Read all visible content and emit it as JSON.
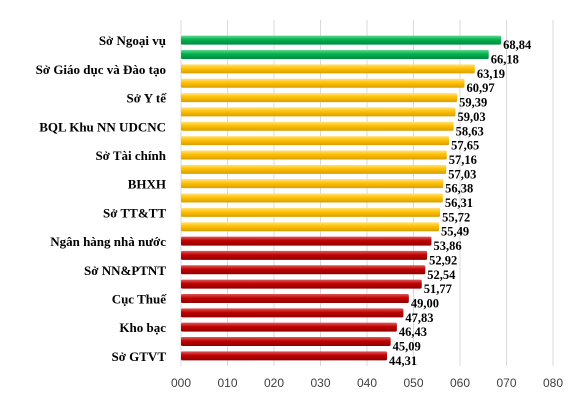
{
  "chart_data": {
    "type": "bar",
    "orientation": "horizontal",
    "values": [
      68.84,
      66.18,
      63.19,
      60.97,
      59.39,
      59.03,
      58.63,
      57.65,
      57.16,
      57.03,
      56.38,
      56.31,
      55.72,
      55.49,
      53.86,
      52.92,
      52.54,
      51.77,
      49.0,
      47.83,
      46.43,
      45.09,
      44.31
    ],
    "value_labels": [
      "68,84",
      "66,18",
      "63,19",
      "60,97",
      "59,39",
      "59,03",
      "58,63",
      "57,65",
      "57,16",
      "57,03",
      "56,38",
      "56,31",
      "55,72",
      "55,49",
      "53,86",
      "52,92",
      "52,54",
      "51,77",
      "49,00",
      "47,83",
      "46,43",
      "45,09",
      "44,31"
    ],
    "category_labels": [
      "Sở Ngoại vụ",
      "",
      "Sở Giáo dục và Đào tạo",
      "",
      "Sở Y tế",
      "",
      "BQL Khu NN UDCNC",
      "",
      "Sở Tài chính",
      "",
      "BHXH",
      "",
      "Sở TT&TT",
      "",
      "Ngân hàng nhà nước",
      "",
      "Sở NN&PTNT",
      "",
      "Cục Thuế",
      "",
      "Kho bạc",
      "",
      "Sở GTVT"
    ],
    "bar_colors": [
      "#00b050",
      "#00b050",
      "#ffc000",
      "#ffc000",
      "#ffc000",
      "#ffc000",
      "#ffc000",
      "#ffc000",
      "#ffc000",
      "#ffc000",
      "#ffc000",
      "#ffc000",
      "#ffc000",
      "#ffc000",
      "#c00000",
      "#c00000",
      "#c00000",
      "#c00000",
      "#c00000",
      "#c00000",
      "#c00000",
      "#c00000",
      "#c00000"
    ],
    "x_tick_labels": [
      "000",
      "010",
      "020",
      "030",
      "040",
      "050",
      "060",
      "070",
      "080"
    ],
    "xlim": [
      0,
      80
    ],
    "grid": true,
    "legend": "none"
  }
}
